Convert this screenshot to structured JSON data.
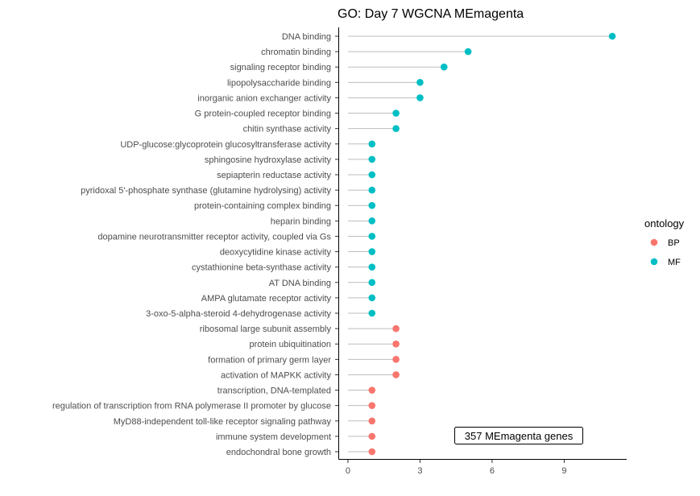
{
  "chart_data": {
    "type": "lollipop",
    "title": "GO: Day 7 WGCNA MEmagenta",
    "xlabel": "",
    "ylabel": "",
    "xlim": [
      -0.4,
      11.6
    ],
    "xticks": [
      0,
      3,
      6,
      9
    ],
    "grid": false,
    "legend": {
      "title": "ontology",
      "position": "right",
      "entries": [
        {
          "name": "BP",
          "color": "#F8766D"
        },
        {
          "name": "MF",
          "color": "#00BFC4"
        }
      ]
    },
    "annotation": "357 MEmagenta genes",
    "stem_color": "#bdbdbd",
    "terms": [
      {
        "label": "DNA binding",
        "value": 11,
        "ontology": "MF"
      },
      {
        "label": "chromatin binding",
        "value": 5,
        "ontology": "MF"
      },
      {
        "label": "signaling receptor binding",
        "value": 4,
        "ontology": "MF"
      },
      {
        "label": "lipopolysaccharide binding",
        "value": 3,
        "ontology": "MF"
      },
      {
        "label": "inorganic anion exchanger activity",
        "value": 3,
        "ontology": "MF"
      },
      {
        "label": "G protein-coupled receptor binding",
        "value": 2,
        "ontology": "MF"
      },
      {
        "label": "chitin synthase activity",
        "value": 2,
        "ontology": "MF"
      },
      {
        "label": "UDP-glucose:glycoprotein glucosyltransferase activity",
        "value": 1,
        "ontology": "MF"
      },
      {
        "label": "sphingosine hydroxylase activity",
        "value": 1,
        "ontology": "MF"
      },
      {
        "label": "sepiapterin reductase activity",
        "value": 1,
        "ontology": "MF"
      },
      {
        "label": "pyridoxal 5'-phosphate synthase (glutamine hydrolysing) activity",
        "value": 1,
        "ontology": "MF"
      },
      {
        "label": "protein-containing complex binding",
        "value": 1,
        "ontology": "MF"
      },
      {
        "label": "heparin binding",
        "value": 1,
        "ontology": "MF"
      },
      {
        "label": "dopamine neurotransmitter receptor activity, coupled via Gs",
        "value": 1,
        "ontology": "MF"
      },
      {
        "label": "deoxycytidine kinase activity",
        "value": 1,
        "ontology": "MF"
      },
      {
        "label": "cystathionine beta-synthase activity",
        "value": 1,
        "ontology": "MF"
      },
      {
        "label": "AT DNA binding",
        "value": 1,
        "ontology": "MF"
      },
      {
        "label": "AMPA glutamate receptor activity",
        "value": 1,
        "ontology": "MF"
      },
      {
        "label": "3-oxo-5-alpha-steroid 4-dehydrogenase activity",
        "value": 1,
        "ontology": "MF"
      },
      {
        "label": "ribosomal large subunit assembly",
        "value": 2,
        "ontology": "BP"
      },
      {
        "label": "protein ubiquitination",
        "value": 2,
        "ontology": "BP"
      },
      {
        "label": "formation of primary germ layer",
        "value": 2,
        "ontology": "BP"
      },
      {
        "label": "activation of MAPKK activity",
        "value": 2,
        "ontology": "BP"
      },
      {
        "label": "transcription, DNA-templated",
        "value": 1,
        "ontology": "BP"
      },
      {
        "label": "regulation of transcription from RNA polymerase II promoter by glucose",
        "value": 1,
        "ontology": "BP"
      },
      {
        "label": "MyD88-independent toll-like receptor signaling pathway",
        "value": 1,
        "ontology": "BP"
      },
      {
        "label": "immune system development",
        "value": 1,
        "ontology": "BP"
      },
      {
        "label": "endochondral bone growth",
        "value": 1,
        "ontology": "BP"
      }
    ]
  }
}
